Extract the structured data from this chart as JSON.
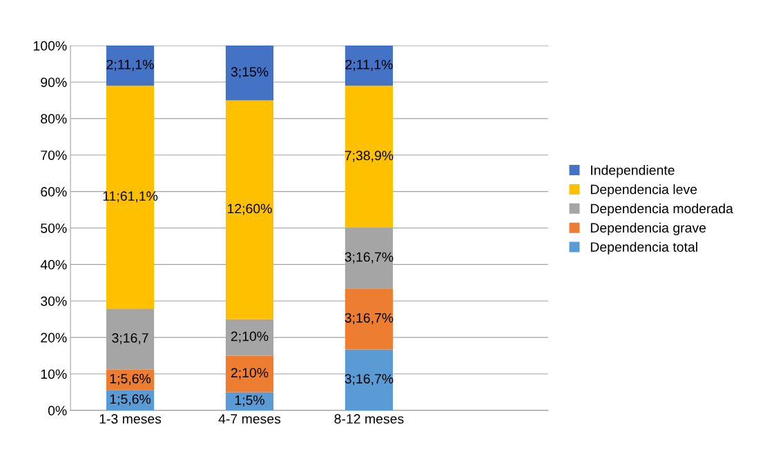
{
  "chart_data": {
    "type": "bar",
    "stacked": true,
    "categories": [
      "1-3 meses",
      "4-7 meses",
      "8-12 meses"
    ],
    "series": [
      {
        "name": "Dependencia total",
        "color": "#5b9bd5",
        "values": [
          5.6,
          5,
          16.7
        ],
        "value_labels": [
          "1;5,6%",
          "1;5%",
          "3;16,7%"
        ]
      },
      {
        "name": "Dependencia grave",
        "color": "#ed7d31",
        "values": [
          5.6,
          10,
          16.7
        ],
        "value_labels": [
          "1;5,6%",
          "2;10%",
          "3;16,7%"
        ]
      },
      {
        "name": "Dependencia moderada",
        "color": "#a5a5a5",
        "values": [
          16.7,
          10,
          16.7
        ],
        "value_labels": [
          "3;16,7",
          "2;10%",
          "3;16,7%"
        ]
      },
      {
        "name": "Dependencia leve",
        "color": "#ffc000",
        "values": [
          61.1,
          60,
          38.9
        ],
        "value_labels": [
          "11;61,1%",
          "12;60%",
          "7;38,9%"
        ]
      },
      {
        "name": "Independiente",
        "color": "#4472c4",
        "values": [
          11.1,
          15,
          11.1
        ],
        "value_labels": [
          "2;11,1%",
          "3;15%",
          "2;11,1%"
        ]
      }
    ],
    "ylim": [
      0,
      100
    ],
    "yticks": [
      {
        "value": 0,
        "label": "0%"
      },
      {
        "value": 10,
        "label": "10%"
      },
      {
        "value": 20,
        "label": "20%"
      },
      {
        "value": 30,
        "label": "30%"
      },
      {
        "value": 40,
        "label": "40%"
      },
      {
        "value": 50,
        "label": "50%"
      },
      {
        "value": 60,
        "label": "60%"
      },
      {
        "value": 70,
        "label": "70%"
      },
      {
        "value": 80,
        "label": "80%"
      },
      {
        "value": 90,
        "label": "90%"
      },
      {
        "value": 100,
        "label": "100%"
      }
    ],
    "grid": "y",
    "legend": "right"
  }
}
